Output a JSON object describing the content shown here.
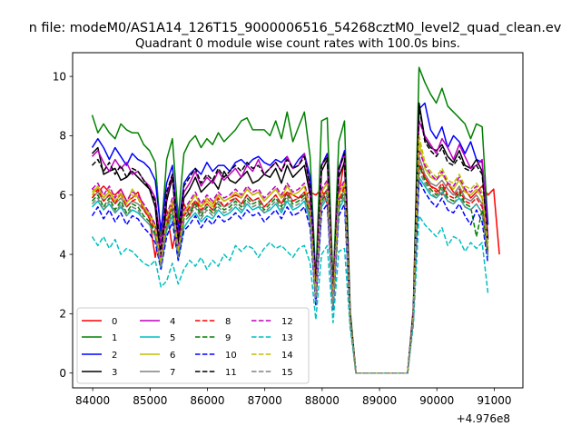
{
  "figure": {
    "suptitle": "n file: modeM0/AS1A14_126T15_9000006516_54268cztM0_level2_quad_clean.ev",
    "offset_text": "+4.976e8"
  },
  "chart_data": {
    "type": "line",
    "title": "Quadrant 0 module wise count rates with 100.0s bins.",
    "xlabel": "",
    "ylabel": "",
    "x_offset": 497600000,
    "xlim": [
      83650,
      91500
    ],
    "ylim": [
      -0.5,
      10.8
    ],
    "x_ticks": [
      84000,
      85000,
      86000,
      87000,
      88000,
      89000,
      90000,
      91000
    ],
    "x_tick_labels": [
      "84000",
      "85000",
      "86000",
      "87000",
      "88000",
      "89000",
      "90000",
      "91000"
    ],
    "y_ticks": [
      0,
      2,
      4,
      6,
      8,
      10
    ],
    "y_tick_labels": [
      "0",
      "2",
      "4",
      "6",
      "8",
      "10"
    ],
    "grid": false,
    "legend_position": "lower-left",
    "x_start": 83990,
    "x_step": 100,
    "series": [
      {
        "name": "0",
        "color": "#ff0000",
        "dash": "solid",
        "values": [
          6.2,
          6.1,
          6.3,
          6.1,
          6.0,
          6.2,
          5.8,
          5.9,
          6.1,
          5.6,
          5.2,
          3.9,
          5.0,
          5.5,
          4.2,
          5.1,
          5.7,
          5.3,
          5.8,
          5.6,
          5.9,
          5.7,
          6.0,
          5.8,
          5.9,
          6.0,
          5.9,
          6.2,
          6.0,
          6.1,
          5.8,
          6.0,
          6.2,
          5.9,
          6.1,
          6.0,
          5.9,
          6.0,
          6.1,
          6.0,
          6.2,
          5.7,
          2.8,
          6.0,
          7.2,
          1.9,
          0,
          0,
          0,
          0,
          0,
          0,
          0,
          0,
          0,
          0,
          2.0,
          7.0,
          6.6,
          6.3,
          6.2,
          6.0,
          6.4,
          6.1,
          6.0,
          6.2,
          5.9,
          6.1,
          6.3,
          6.0,
          6.2,
          4.0
        ]
      },
      {
        "name": "1",
        "color": "#008000",
        "dash": "solid",
        "values": [
          8.7,
          8.1,
          8.4,
          8.1,
          7.9,
          8.4,
          8.2,
          8.1,
          8.1,
          7.7,
          7.5,
          7.1,
          4.6,
          7.2,
          7.9,
          5.2,
          7.4,
          7.8,
          8.0,
          7.6,
          7.9,
          7.7,
          8.1,
          7.8,
          8.0,
          8.2,
          8.5,
          8.6,
          8.2,
          8.2,
          8.2,
          8.0,
          8.5,
          7.9,
          8.8,
          7.8,
          8.3,
          8.8,
          7.3,
          3.2,
          8.5,
          8.6,
          3.0,
          7.8,
          8.5,
          2.1,
          0,
          0,
          0,
          0,
          0,
          0,
          0,
          0,
          0,
          0,
          2.2,
          10.3,
          9.8,
          9.4,
          9.1,
          9.6,
          9.0,
          8.8,
          8.6,
          8.4,
          7.9,
          8.4,
          8.3,
          5.0
        ]
      },
      {
        "name": "2",
        "color": "#0000ff",
        "dash": "solid",
        "values": [
          7.6,
          7.9,
          7.6,
          7.2,
          7.6,
          7.3,
          7.0,
          7.4,
          7.2,
          7.1,
          6.9,
          6.5,
          4.8,
          6.4,
          7.0,
          4.8,
          6.4,
          6.7,
          6.9,
          6.7,
          7.1,
          6.8,
          7.0,
          7.0,
          6.8,
          7.1,
          7.2,
          7.0,
          7.2,
          7.3,
          7.1,
          7.0,
          7.2,
          7.1,
          7.3,
          6.9,
          7.2,
          7.4,
          6.6,
          3.0,
          7.0,
          7.4,
          2.6,
          6.9,
          7.5,
          1.9,
          0,
          0,
          0,
          0,
          0,
          0,
          0,
          0,
          0,
          0,
          2.1,
          8.9,
          9.1,
          8.2,
          7.9,
          8.3,
          7.6,
          8.0,
          7.8,
          7.4,
          7.8,
          7.2,
          7.1,
          5.0
        ]
      },
      {
        "name": "3",
        "color": "#000000",
        "dash": "solid",
        "values": [
          7.4,
          7.6,
          6.7,
          6.8,
          6.9,
          6.5,
          6.6,
          6.8,
          6.6,
          6.4,
          6.2,
          5.6,
          3.6,
          5.8,
          6.6,
          4.3,
          5.9,
          6.2,
          6.6,
          6.1,
          6.3,
          6.5,
          6.2,
          6.8,
          6.5,
          6.4,
          6.6,
          6.8,
          6.4,
          6.5,
          6.7,
          6.6,
          6.9,
          6.4,
          7.0,
          6.6,
          6.8,
          7.0,
          6.0,
          2.8,
          6.8,
          7.2,
          2.5,
          6.6,
          7.1,
          1.8,
          0,
          0,
          0,
          0,
          0,
          0,
          0,
          0,
          0,
          0,
          2.0,
          9.1,
          7.9,
          7.6,
          7.5,
          7.7,
          7.3,
          7.1,
          7.5,
          7.0,
          6.9,
          7.2,
          6.8,
          4.5
        ]
      },
      {
        "name": "4",
        "color": "#bf00bf",
        "dash": "solid",
        "values": [
          7.3,
          7.5,
          7.1,
          6.8,
          7.2,
          6.9,
          7.1,
          6.7,
          6.8,
          6.5,
          6.3,
          5.9,
          4.3,
          6.0,
          6.7,
          4.6,
          6.1,
          6.4,
          6.8,
          6.3,
          6.6,
          6.4,
          6.8,
          6.5,
          6.7,
          6.9,
          6.6,
          7.0,
          6.8,
          7.2,
          6.7,
          6.9,
          7.1,
          6.8,
          7.3,
          6.9,
          7.0,
          7.4,
          6.2,
          2.9,
          7.0,
          7.3,
          2.7,
          6.8,
          7.4,
          1.9,
          0,
          0,
          0,
          0,
          0,
          0,
          0,
          0,
          0,
          0,
          2.1,
          8.5,
          8.0,
          7.7,
          7.4,
          7.9,
          7.6,
          7.2,
          7.7,
          7.3,
          6.9,
          7.0,
          7.2,
          4.6
        ]
      },
      {
        "name": "5",
        "color": "#00bfbf",
        "dash": "solid",
        "values": [
          5.6,
          5.8,
          5.5,
          5.7,
          5.4,
          5.6,
          5.3,
          5.5,
          5.4,
          5.2,
          5.0,
          4.6,
          3.5,
          4.8,
          5.3,
          3.8,
          4.9,
          5.2,
          5.4,
          5.1,
          5.3,
          5.2,
          5.5,
          5.3,
          5.4,
          5.6,
          5.4,
          5.7,
          5.5,
          5.6,
          5.4,
          5.5,
          5.7,
          5.4,
          5.8,
          5.5,
          5.6,
          5.8,
          5.1,
          2.4,
          5.6,
          5.9,
          2.2,
          5.5,
          5.9,
          1.7,
          0,
          0,
          0,
          0,
          0,
          0,
          0,
          0,
          0,
          0,
          1.8,
          6.6,
          6.3,
          6.0,
          5.9,
          6.1,
          5.8,
          5.7,
          5.9,
          5.6,
          5.5,
          5.7,
          5.4,
          3.9
        ]
      },
      {
        "name": "6",
        "color": "#bfbf00",
        "dash": "solid",
        "values": [
          6.0,
          6.3,
          5.9,
          6.1,
          5.8,
          6.0,
          5.7,
          6.2,
          5.9,
          5.6,
          5.4,
          5.0,
          3.7,
          5.2,
          5.8,
          4.1,
          5.4,
          5.7,
          6.0,
          5.6,
          5.8,
          5.6,
          6.0,
          5.8,
          5.9,
          6.1,
          5.9,
          6.2,
          6.0,
          6.1,
          5.8,
          6.0,
          6.2,
          5.9,
          6.3,
          6.0,
          6.1,
          6.3,
          5.5,
          2.6,
          6.1,
          6.4,
          2.4,
          6.0,
          6.4,
          1.8,
          0,
          0,
          0,
          0,
          0,
          0,
          0,
          0,
          0,
          0,
          1.9,
          7.8,
          6.9,
          6.6,
          6.5,
          6.7,
          6.4,
          6.2,
          6.5,
          6.1,
          6.0,
          6.2,
          5.9,
          4.2
        ]
      },
      {
        "name": "7",
        "color": "#808080",
        "dash": "solid",
        "values": [
          5.9,
          6.1,
          5.8,
          6.0,
          5.7,
          5.9,
          5.6,
          5.8,
          5.7,
          5.5,
          5.3,
          4.9,
          3.6,
          5.1,
          5.6,
          4.0,
          5.3,
          5.5,
          5.8,
          5.4,
          5.7,
          5.5,
          5.8,
          5.6,
          5.7,
          5.9,
          5.7,
          6.0,
          5.8,
          5.9,
          5.6,
          5.8,
          6.0,
          5.7,
          6.1,
          5.8,
          5.9,
          6.1,
          5.4,
          2.5,
          5.9,
          6.2,
          2.3,
          5.8,
          6.2,
          1.8,
          0,
          0,
          0,
          0,
          0,
          0,
          0,
          0,
          0,
          0,
          1.9,
          7.3,
          6.7,
          6.4,
          6.3,
          6.5,
          6.2,
          6.0,
          6.3,
          5.9,
          5.8,
          6.0,
          5.7,
          4.0
        ]
      },
      {
        "name": "8",
        "color": "#ff0000",
        "dash": "dashed",
        "values": [
          5.9,
          6.2,
          5.8,
          6.0,
          5.7,
          6.1,
          5.6,
          5.8,
          5.9,
          5.5,
          5.2,
          4.8,
          3.8,
          5.1,
          5.7,
          4.1,
          5.3,
          5.6,
          5.8,
          5.5,
          5.7,
          5.5,
          5.9,
          5.6,
          5.8,
          5.9,
          5.7,
          6.0,
          5.8,
          5.9,
          5.6,
          5.8,
          6.0,
          5.7,
          6.1,
          5.8,
          5.9,
          6.1,
          5.4,
          2.6,
          5.9,
          6.2,
          2.3,
          5.8,
          6.3,
          1.8,
          0,
          0,
          0,
          0,
          0,
          0,
          0,
          0,
          0,
          0,
          1.9,
          7.1,
          6.6,
          6.3,
          6.1,
          6.4,
          6.0,
          5.9,
          6.2,
          5.8,
          5.7,
          5.9,
          5.6,
          4.1
        ]
      },
      {
        "name": "9",
        "color": "#008000",
        "dash": "dashed",
        "values": [
          5.8,
          6.0,
          5.6,
          5.9,
          5.5,
          5.8,
          5.4,
          5.7,
          5.6,
          5.3,
          5.1,
          4.7,
          3.7,
          5.0,
          5.5,
          4.0,
          5.2,
          5.4,
          5.7,
          5.3,
          5.6,
          5.4,
          5.7,
          5.5,
          5.6,
          5.8,
          5.6,
          5.9,
          5.7,
          5.8,
          5.5,
          5.7,
          5.9,
          5.6,
          6.0,
          5.7,
          5.8,
          6.0,
          5.3,
          2.5,
          5.8,
          6.1,
          2.3,
          5.7,
          6.1,
          1.8,
          0,
          0,
          0,
          0,
          0,
          0,
          0,
          0,
          0,
          0,
          1.9,
          7.0,
          6.5,
          6.2,
          6.0,
          6.3,
          5.9,
          5.8,
          6.1,
          5.7,
          5.6,
          4.6,
          5.5,
          4.0
        ]
      },
      {
        "name": "10",
        "color": "#0000ff",
        "dash": "dashed",
        "values": [
          5.3,
          5.6,
          5.2,
          5.5,
          5.1,
          5.4,
          5.0,
          5.3,
          5.2,
          4.9,
          4.7,
          4.4,
          3.5,
          4.6,
          5.1,
          3.8,
          4.8,
          5.0,
          5.3,
          4.9,
          5.2,
          5.0,
          5.3,
          5.1,
          5.2,
          5.4,
          5.2,
          5.5,
          5.3,
          5.4,
          5.1,
          5.3,
          5.5,
          5.2,
          5.6,
          5.3,
          5.4,
          5.6,
          4.9,
          2.3,
          5.4,
          5.7,
          2.1,
          5.3,
          5.7,
          1.7,
          0,
          0,
          0,
          0,
          0,
          0,
          0,
          0,
          0,
          0,
          1.8,
          6.5,
          6.1,
          5.8,
          5.6,
          5.9,
          5.5,
          5.4,
          5.7,
          5.3,
          5.0,
          5.5,
          5.1,
          3.7
        ]
      },
      {
        "name": "11",
        "color": "#000000",
        "dash": "dashed",
        "values": [
          7.0,
          7.2,
          6.8,
          7.1,
          6.7,
          7.0,
          6.6,
          6.9,
          6.8,
          6.5,
          6.2,
          5.8,
          4.0,
          6.1,
          6.7,
          4.5,
          6.3,
          6.6,
          6.9,
          6.4,
          6.7,
          6.5,
          6.9,
          6.6,
          6.8,
          7.0,
          6.8,
          7.1,
          6.9,
          7.0,
          6.7,
          6.9,
          7.1,
          6.8,
          7.2,
          6.9,
          7.0,
          7.3,
          6.3,
          2.9,
          7.0,
          7.3,
          2.6,
          6.9,
          7.4,
          1.9,
          0,
          0,
          0,
          0,
          0,
          0,
          0,
          0,
          0,
          0,
          2.0,
          9.0,
          7.8,
          7.5,
          7.3,
          7.6,
          7.1,
          7.0,
          7.3,
          6.9,
          6.8,
          7.0,
          6.7,
          4.4
        ]
      },
      {
        "name": "12",
        "color": "#bf00bf",
        "dash": "dashed",
        "values": [
          6.2,
          6.4,
          6.0,
          6.3,
          5.9,
          6.2,
          5.8,
          6.1,
          6.0,
          5.7,
          5.4,
          5.0,
          3.8,
          5.3,
          5.9,
          4.2,
          5.5,
          5.8,
          6.1,
          5.7,
          6.0,
          5.8,
          6.1,
          5.9,
          6.0,
          6.2,
          6.0,
          6.3,
          6.1,
          6.2,
          5.9,
          6.1,
          6.3,
          6.0,
          6.4,
          6.1,
          6.2,
          6.4,
          5.6,
          2.6,
          6.2,
          6.5,
          2.4,
          6.1,
          6.5,
          1.8,
          0,
          0,
          0,
          0,
          0,
          0,
          0,
          0,
          0,
          0,
          1.9,
          7.5,
          7.0,
          6.7,
          6.5,
          6.8,
          6.4,
          6.3,
          6.6,
          6.2,
          6.1,
          6.3,
          6.0,
          4.3
        ]
      },
      {
        "name": "13",
        "color": "#00bfbf",
        "dash": "dashed",
        "values": [
          4.6,
          4.3,
          4.6,
          4.2,
          4.5,
          4.0,
          4.2,
          4.1,
          3.9,
          3.7,
          3.6,
          3.8,
          2.9,
          3.1,
          3.7,
          3.0,
          3.5,
          3.8,
          3.6,
          3.9,
          3.5,
          3.8,
          3.6,
          4.0,
          3.8,
          4.3,
          4.1,
          4.3,
          4.2,
          3.9,
          4.2,
          4.4,
          4.2,
          4.3,
          4.1,
          3.9,
          4.2,
          4.3,
          3.7,
          1.8,
          4.0,
          4.3,
          1.7,
          4.1,
          4.2,
          1.5,
          0,
          0,
          0,
          0,
          0,
          0,
          0,
          0,
          0,
          0,
          1.6,
          5.3,
          5.0,
          4.8,
          4.6,
          4.9,
          4.3,
          4.6,
          4.5,
          4.1,
          4.4,
          4.2,
          4.4,
          2.7
        ]
      },
      {
        "name": "14",
        "color": "#bfbf00",
        "dash": "dashed",
        "values": [
          6.1,
          6.3,
          5.9,
          6.2,
          5.8,
          6.1,
          5.7,
          6.0,
          5.9,
          5.6,
          5.3,
          4.9,
          3.7,
          5.2,
          5.8,
          4.1,
          5.4,
          5.7,
          6.0,
          5.6,
          5.9,
          5.7,
          6.0,
          5.8,
          5.9,
          6.1,
          5.9,
          6.2,
          6.0,
          6.1,
          5.8,
          6.0,
          6.2,
          5.9,
          6.3,
          6.0,
          6.1,
          6.3,
          5.5,
          2.6,
          6.1,
          6.4,
          2.4,
          6.0,
          6.4,
          1.8,
          0,
          0,
          0,
          0,
          0,
          0,
          0,
          0,
          0,
          0,
          1.9,
          8.0,
          7.1,
          6.8,
          6.6,
          6.9,
          6.5,
          6.4,
          6.7,
          6.3,
          6.2,
          6.4,
          6.1,
          4.3
        ]
      },
      {
        "name": "15",
        "color": "#808080",
        "dash": "dashed",
        "values": [
          5.7,
          5.9,
          5.5,
          5.8,
          5.4,
          5.7,
          5.3,
          5.6,
          5.5,
          5.2,
          5.0,
          4.6,
          3.6,
          4.9,
          5.4,
          3.9,
          5.1,
          5.3,
          5.6,
          5.2,
          5.5,
          5.3,
          5.6,
          5.4,
          5.5,
          5.7,
          5.5,
          5.8,
          5.6,
          5.7,
          5.4,
          5.6,
          5.8,
          5.5,
          5.9,
          5.6,
          5.7,
          5.9,
          5.2,
          2.4,
          5.7,
          6.0,
          2.2,
          5.6,
          6.0,
          1.7,
          0,
          0,
          0,
          0,
          0,
          0,
          0,
          0,
          0,
          0,
          1.8,
          6.8,
          6.4,
          6.1,
          5.9,
          6.2,
          5.8,
          5.7,
          6.0,
          5.6,
          5.5,
          5.7,
          5.4,
          3.9
        ]
      }
    ]
  }
}
